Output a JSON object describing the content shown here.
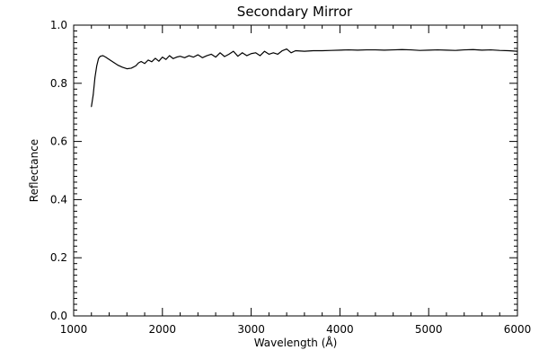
{
  "chart_data": {
    "type": "line",
    "title": "Secondary Mirror",
    "xlabel": "Wavelength (Å)",
    "ylabel": "Reflectance",
    "xlim": [
      1000,
      6000
    ],
    "ylim": [
      0.0,
      1.0
    ],
    "x_ticks": [
      1000,
      2000,
      3000,
      4000,
      5000,
      6000
    ],
    "x_tick_labels": [
      "1000",
      "2000",
      "3000",
      "4000",
      "5000",
      "6000"
    ],
    "y_ticks": [
      0.0,
      0.2,
      0.4,
      0.6,
      0.8,
      1.0
    ],
    "y_tick_labels": [
      "0.0",
      "0.2",
      "0.4",
      "0.6",
      "0.8",
      "1.0"
    ],
    "grid": false,
    "line_color": "#000000",
    "series": [
      {
        "x": [
          1200,
          1220,
          1240,
          1260,
          1280,
          1300,
          1330,
          1360,
          1400,
          1450,
          1500,
          1550,
          1600,
          1650,
          1700,
          1730,
          1760,
          1800,
          1840,
          1880,
          1920,
          1960,
          2000,
          2040,
          2080,
          2120,
          2160,
          2200,
          2250,
          2300,
          2350,
          2400,
          2450,
          2500,
          2550,
          2600,
          2650,
          2700,
          2750,
          2800,
          2850,
          2900,
          2950,
          3000,
          3050,
          3100,
          3150,
          3200,
          3250,
          3300,
          3350,
          3400,
          3450,
          3500,
          3600,
          3700,
          3800,
          3900,
          4000,
          4100,
          4200,
          4300,
          4400,
          4500,
          4600,
          4700,
          4800,
          4900,
          5000,
          5100,
          5200,
          5300,
          5400,
          5500,
          5600,
          5700,
          5800,
          5900,
          6000
        ],
        "y": [
          0.72,
          0.76,
          0.82,
          0.86,
          0.885,
          0.893,
          0.895,
          0.89,
          0.882,
          0.872,
          0.862,
          0.855,
          0.85,
          0.852,
          0.86,
          0.87,
          0.875,
          0.868,
          0.88,
          0.874,
          0.886,
          0.876,
          0.89,
          0.882,
          0.895,
          0.885,
          0.89,
          0.893,
          0.888,
          0.895,
          0.89,
          0.898,
          0.888,
          0.895,
          0.9,
          0.89,
          0.905,
          0.892,
          0.9,
          0.91,
          0.893,
          0.905,
          0.895,
          0.902,
          0.905,
          0.895,
          0.91,
          0.9,
          0.905,
          0.9,
          0.912,
          0.918,
          0.905,
          0.912,
          0.91,
          0.912,
          0.912,
          0.913,
          0.914,
          0.915,
          0.914,
          0.915,
          0.915,
          0.914,
          0.915,
          0.916,
          0.915,
          0.913,
          0.914,
          0.915,
          0.914,
          0.913,
          0.915,
          0.916,
          0.914,
          0.915,
          0.913,
          0.912,
          0.91
        ]
      }
    ]
  }
}
